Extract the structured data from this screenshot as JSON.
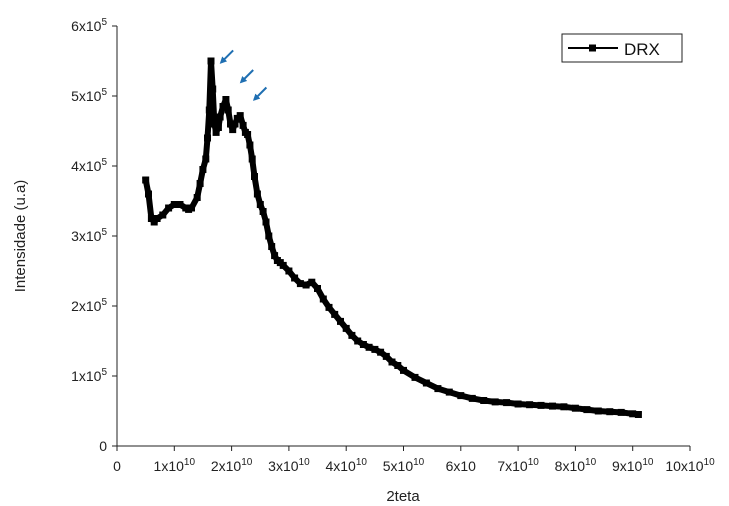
{
  "chart_data": {
    "type": "line",
    "xlabel": "2teta",
    "ylabel": "Intensidade (u.a)",
    "xlim": [
      0,
      100000000000
    ],
    "ylim": [
      0,
      600000
    ],
    "grid": false,
    "legend_placement": "top-right",
    "x_tick_labels": [
      {
        "value": 0,
        "base": "0",
        "exp": ""
      },
      {
        "value": 10000000000,
        "base": "1x10",
        "exp": "10"
      },
      {
        "value": 20000000000,
        "base": "2x10",
        "exp": "10"
      },
      {
        "value": 30000000000,
        "base": "3x10",
        "exp": "10"
      },
      {
        "value": 40000000000,
        "base": "4x10",
        "exp": "10"
      },
      {
        "value": 50000000000,
        "base": "5x10",
        "exp": "10"
      },
      {
        "value": 60000000000,
        "base": "6x10",
        "exp": ""
      },
      {
        "value": 70000000000,
        "base": "7x10",
        "exp": "10"
      },
      {
        "value": 80000000000,
        "base": "8x10",
        "exp": "10"
      },
      {
        "value": 90000000000,
        "base": "9x10",
        "exp": "10"
      },
      {
        "value": 100000000000,
        "base": "10x10",
        "exp": "10"
      }
    ],
    "y_tick_labels": [
      {
        "value": 0,
        "base": "0",
        "exp": ""
      },
      {
        "value": 100000,
        "base": "1x10",
        "exp": "5"
      },
      {
        "value": 200000,
        "base": "2x10",
        "exp": "5"
      },
      {
        "value": 300000,
        "base": "3x10",
        "exp": "5"
      },
      {
        "value": 400000,
        "base": "4x10",
        "exp": "5"
      },
      {
        "value": 500000,
        "base": "5x10",
        "exp": "5"
      },
      {
        "value": 600000,
        "base": "6x10",
        "exp": "5"
      }
    ],
    "series": [
      {
        "name": "DRX",
        "color": "#000000",
        "marker": "square",
        "x": [
          5000000000,
          5500000000,
          6000000000,
          6500000000,
          7000000000,
          8000000000,
          9000000000,
          10000000000,
          11000000000,
          12000000000,
          12500000000,
          13000000000,
          14000000000,
          14500000000,
          15000000000,
          15500000000,
          15800000000,
          16100000000,
          16400000000,
          16700000000,
          17000000000,
          17300000000,
          17700000000,
          18000000000,
          18500000000,
          19000000000,
          19400000000,
          19800000000,
          20200000000,
          20600000000,
          21000000000,
          21500000000,
          22000000000,
          22400000000,
          22800000000,
          23200000000,
          23600000000,
          24000000000,
          24500000000,
          25000000000,
          25500000000,
          26000000000,
          26500000000,
          27000000000,
          27500000000,
          28000000000,
          28500000000,
          29000000000,
          30000000000,
          31000000000,
          32000000000,
          33000000000,
          34000000000,
          35000000000,
          36000000000,
          37000000000,
          38000000000,
          39000000000,
          40000000000,
          41000000000,
          42000000000,
          43000000000,
          44000000000,
          45000000000,
          46000000000,
          47000000000,
          48000000000,
          49000000000,
          50000000000,
          52000000000,
          54000000000,
          56000000000,
          58000000000,
          60000000000,
          62000000000,
          64000000000,
          66000000000,
          68000000000,
          70000000000,
          72000000000,
          74000000000,
          76000000000,
          78000000000,
          80000000000,
          82000000000,
          84000000000,
          86000000000,
          88000000000,
          90000000000,
          91000000000
        ],
        "y": [
          380000,
          360000,
          325000,
          320000,
          325000,
          330000,
          340000,
          345000,
          345000,
          340000,
          338000,
          340000,
          355000,
          375000,
          395000,
          410000,
          440000,
          480000,
          550000,
          510000,
          460000,
          448000,
          455000,
          470000,
          485000,
          495000,
          480000,
          460000,
          452000,
          460000,
          468000,
          472000,
          458000,
          448000,
          445000,
          430000,
          410000,
          385000,
          360000,
          345000,
          335000,
          320000,
          300000,
          285000,
          272000,
          265000,
          262000,
          258000,
          250000,
          240000,
          232000,
          230000,
          234000,
          225000,
          210000,
          198000,
          188000,
          178000,
          168000,
          158000,
          150000,
          145000,
          141000,
          138000,
          134000,
          128000,
          120000,
          115000,
          108000,
          98000,
          90000,
          82000,
          77000,
          72000,
          68000,
          65000,
          63000,
          62000,
          60000,
          59000,
          58000,
          57000,
          56000,
          54000,
          52000,
          50000,
          49000,
          48000,
          46000,
          45000
        ]
      }
    ],
    "annotations": [
      {
        "type": "arrow",
        "color": "#1f6fb2",
        "x": 18000000000,
        "y": 548000
      },
      {
        "type": "arrow",
        "color": "#1f6fb2",
        "x": 21500000000,
        "y": 520000
      },
      {
        "type": "arrow",
        "color": "#1f6fb2",
        "x": 23800000000,
        "y": 495000
      }
    ]
  }
}
